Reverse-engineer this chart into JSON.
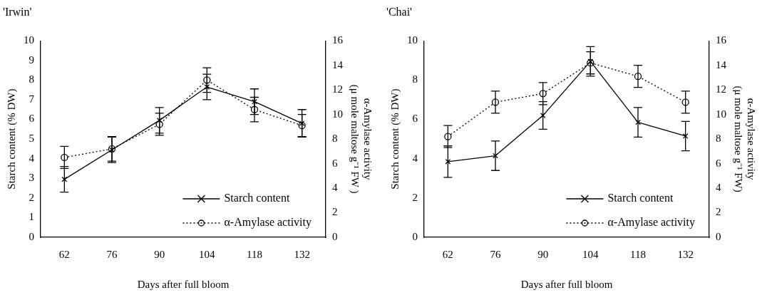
{
  "chart_data": [
    {
      "type": "line",
      "title": "'Irwin'",
      "xlabel": "Days after full bloom",
      "ylabel": "Starch content (% DW)",
      "y2label": "α-Amylase activity\n(μ mole maltose g⁻¹ FW )",
      "categories": [
        "62",
        "76",
        "90",
        "104",
        "118",
        "132"
      ],
      "series": [
        {
          "name": "Starch content",
          "color": "#000000",
          "marker": "cross",
          "line_style": "solid",
          "values": [
            2.95,
            4.45,
            5.95,
            7.65,
            6.9,
            5.8
          ],
          "errors": [
            0.65,
            0.65,
            0.65,
            0.65,
            0.65,
            0.7
          ]
        },
        {
          "name": "α-Amylase activity",
          "color": "#000000",
          "marker": "circle",
          "line_style": "dotted",
          "axis": "y2",
          "values": [
            6.5,
            7.2,
            9.2,
            12.8,
            10.4,
            9.1
          ],
          "errors": [
            0.9,
            1.0,
            0.9,
            1.0,
            1.0,
            0.9
          ]
        }
      ],
      "ylim": [
        0,
        10
      ],
      "yticks": [
        0,
        1,
        2,
        3,
        4,
        5,
        6,
        7,
        8,
        9,
        10
      ],
      "y2lim": [
        0,
        16
      ],
      "y2ticks": [
        0,
        2,
        4,
        6,
        8,
        10,
        12,
        14,
        16
      ],
      "legend": "bottom right"
    },
    {
      "type": "line",
      "title": "'Chai'",
      "xlabel": "Days after full bloom",
      "ylabel": "Starch content (% DW)",
      "y2label": "α-Amylase activity\n(μ mole maltose g⁻¹ FW)",
      "categories": [
        "62",
        "76",
        "90",
        "104",
        "118",
        "132"
      ],
      "series": [
        {
          "name": "Starch content",
          "color": "#000000",
          "marker": "cross",
          "line_style": "solid",
          "values": [
            3.85,
            4.15,
            6.2,
            8.95,
            5.85,
            5.15
          ],
          "errors": [
            0.8,
            0.75,
            0.7,
            0.75,
            0.75,
            0.75
          ]
        },
        {
          "name": "α-Amylase activity",
          "color": "#000000",
          "marker": "circle",
          "line_style": "dotted",
          "axis": "y2",
          "values": [
            8.2,
            11.0,
            11.7,
            14.2,
            13.1,
            11.0
          ],
          "errors": [
            0.9,
            0.9,
            0.9,
            0.9,
            0.9,
            0.9
          ]
        }
      ],
      "ylim": [
        0,
        10
      ],
      "yticks": [
        0,
        2,
        4,
        6,
        8,
        10
      ],
      "y2lim": [
        0,
        16
      ],
      "y2ticks": [
        0,
        2,
        4,
        6,
        8,
        10,
        12,
        14,
        16
      ],
      "legend": "bottom right"
    }
  ]
}
